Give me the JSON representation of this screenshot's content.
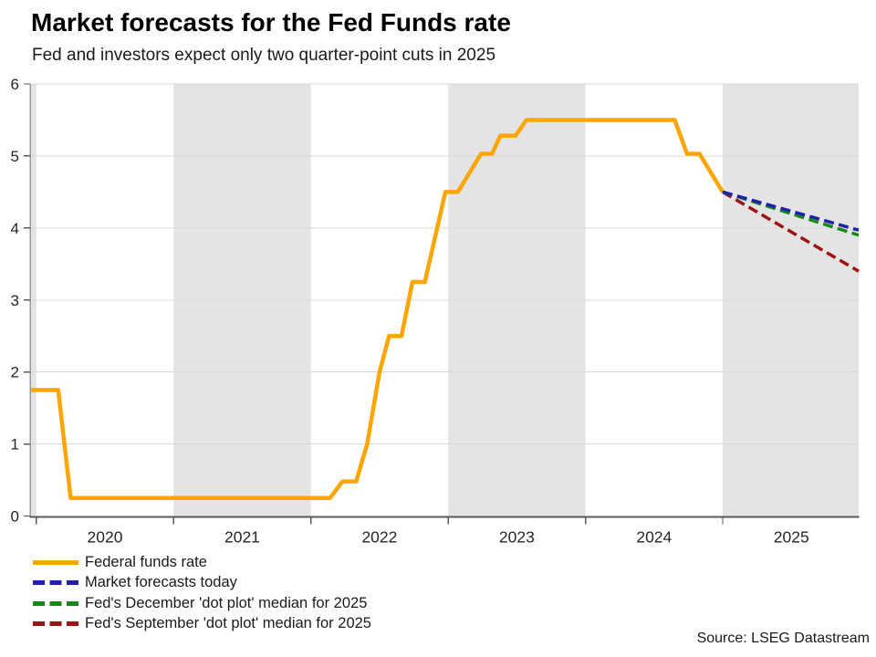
{
  "header": {
    "title": "Market forecasts for the Fed Funds rate",
    "subtitle": "Fed and investors expect only two quarter-point cuts in 2025"
  },
  "source": "Source: LSEG Datastream",
  "colors": {
    "federal_funds_rate": "#FFA500",
    "market_forecast": "#2121A8",
    "december_dot_plot": "#168A16",
    "september_dot_plot": "#9E1414",
    "shaded_band": "#E4E4E4",
    "gridline": "#D8D8D8",
    "axis": "#595959",
    "tick_text": "#262626"
  },
  "chart_data": {
    "type": "line",
    "title": "Market forecasts for the Fed Funds rate",
    "subtitle": "Fed and investors expect only two quarter-point cuts in 2025",
    "xlabel": "",
    "ylabel": "",
    "x_range": [
      2019.955,
      2025.99
    ],
    "ylim": [
      0,
      6
    ],
    "yticks": [
      0,
      1,
      2,
      3,
      4,
      5,
      6
    ],
    "xticks": [
      2020,
      2021,
      2022,
      2023,
      2024,
      2025
    ],
    "x_tick_boundaries": [
      2020,
      2021,
      2022,
      2023,
      2024,
      2025
    ],
    "grid": true,
    "legend_position": "bottom-left",
    "shaded_year_bands": [
      [
        2019.955,
        2020
      ],
      [
        2021,
        2022
      ],
      [
        2023,
        2024
      ],
      [
        2025,
        2025.99
      ]
    ],
    "series": [
      {
        "name": "Federal funds rate",
        "color": "#FFA500",
        "style": "solid",
        "width": 4.5,
        "z": 1,
        "points": [
          [
            2019.96,
            1.75
          ],
          [
            2020.16,
            1.75
          ],
          [
            2020.25,
            0.25
          ],
          [
            2022.14,
            0.25
          ],
          [
            2022.23,
            0.48
          ],
          [
            2022.33,
            0.48
          ],
          [
            2022.41,
            1.0
          ],
          [
            2022.5,
            2.0
          ],
          [
            2022.57,
            2.5
          ],
          [
            2022.66,
            2.5
          ],
          [
            2022.74,
            3.25
          ],
          [
            2022.83,
            3.25
          ],
          [
            2022.98,
            4.5
          ],
          [
            2023.07,
            4.5
          ],
          [
            2023.24,
            5.03
          ],
          [
            2023.32,
            5.03
          ],
          [
            2023.38,
            5.28
          ],
          [
            2023.49,
            5.28
          ],
          [
            2023.57,
            5.5
          ],
          [
            2024.65,
            5.5
          ],
          [
            2024.74,
            5.03
          ],
          [
            2024.83,
            5.03
          ],
          [
            2025.0,
            4.5
          ]
        ]
      },
      {
        "name": "Market forecasts today",
        "color": "#2121A8",
        "style": "dashed",
        "width": 3.5,
        "z": 4,
        "points": [
          [
            2025.0,
            4.5
          ],
          [
            2025.99,
            3.97
          ]
        ]
      },
      {
        "name": "Fed's December 'dot plot' median for 2025",
        "color": "#168A16",
        "style": "dashed",
        "width": 3.5,
        "z": 3,
        "points": [
          [
            2025.0,
            4.5
          ],
          [
            2025.99,
            3.9
          ]
        ]
      },
      {
        "name": "Fed's September 'dot plot' median for 2025",
        "color": "#9E1414",
        "style": "dashed",
        "width": 3.5,
        "z": 2,
        "points": [
          [
            2025.0,
            4.5
          ],
          [
            2025.99,
            3.4
          ]
        ]
      }
    ]
  },
  "legend": {
    "items": [
      {
        "label": "Federal funds rate",
        "color": "#FFA500",
        "style": "solid"
      },
      {
        "label": "Market forecasts today",
        "color": "#2121A8",
        "style": "dashed"
      },
      {
        "label": "Fed's December 'dot plot' median for 2025",
        "color": "#168A16",
        "style": "dashed"
      },
      {
        "label": "Fed's September 'dot plot' median for 2025",
        "color": "#9E1414",
        "style": "dashed"
      }
    ]
  }
}
